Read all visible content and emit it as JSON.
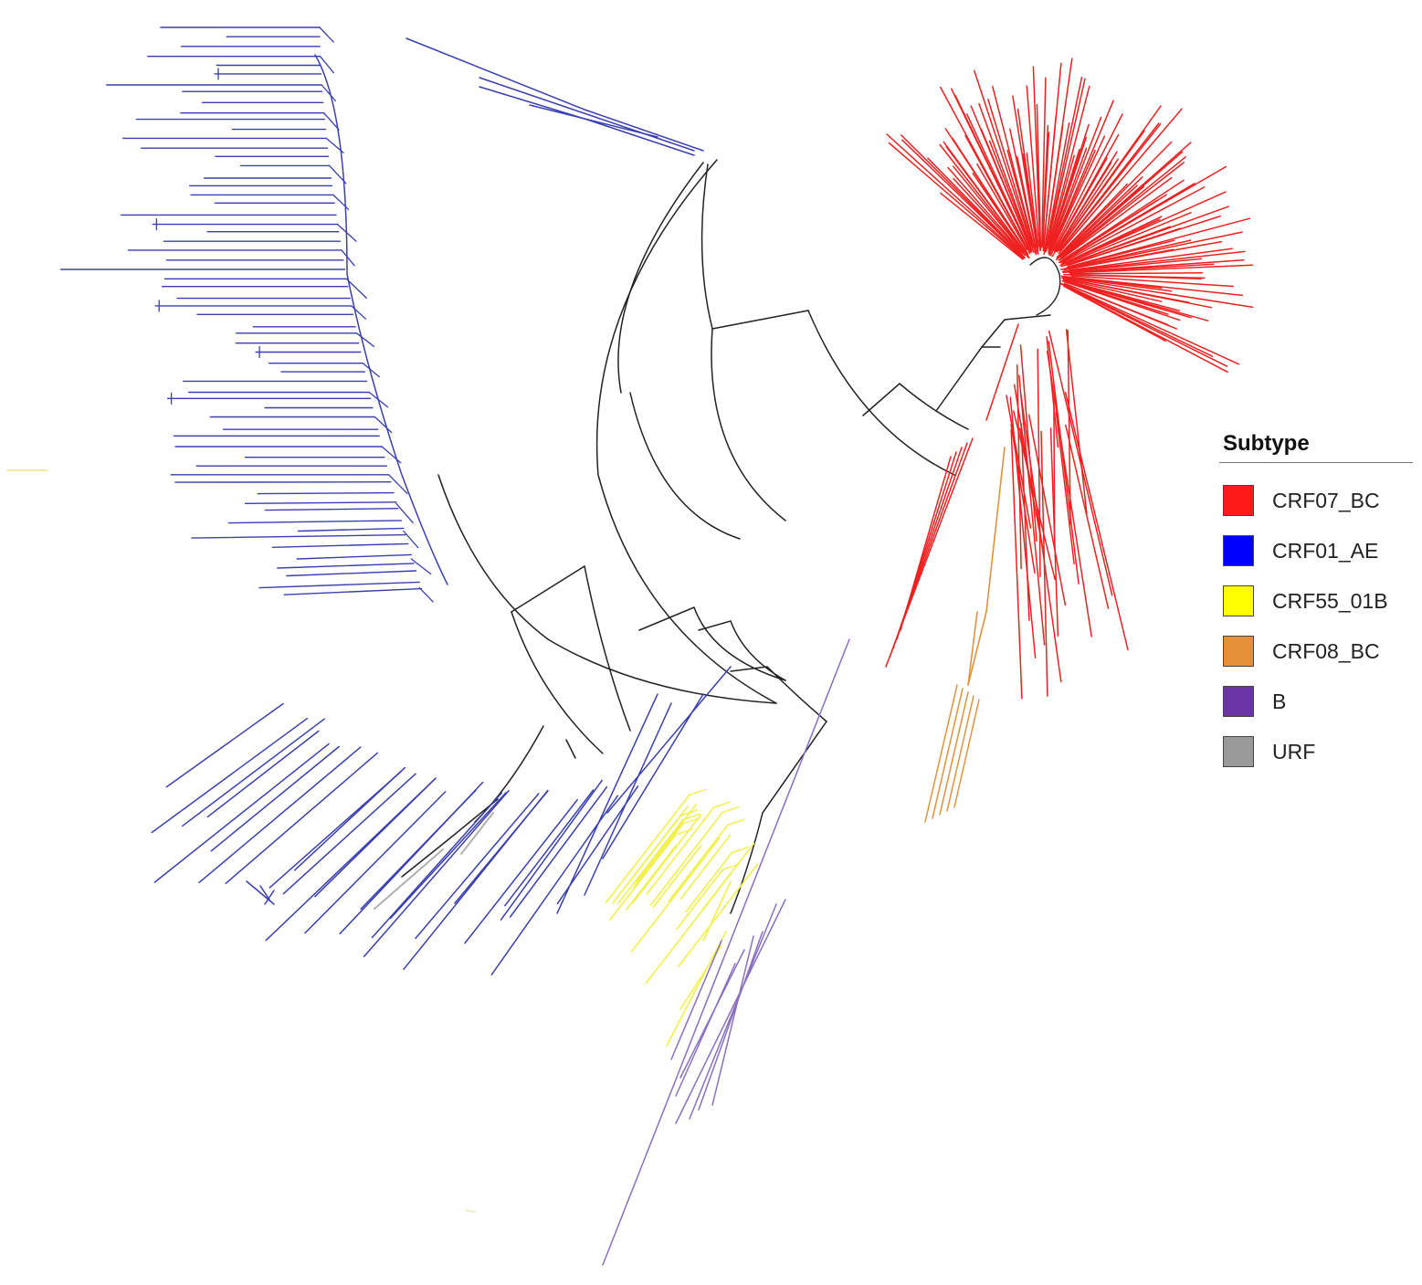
{
  "legend": {
    "title": "Subtype",
    "items": [
      {
        "label": "CRF07_BC",
        "color": "#ff1a1a"
      },
      {
        "label": "CRF01_AE",
        "color": "#0000ff"
      },
      {
        "label": "CRF55_01B",
        "color": "#ffff00"
      },
      {
        "label": "CRF08_BC",
        "color": "#e6903a"
      },
      {
        "label": "B",
        "color": "#6b35a8"
      },
      {
        "label": "URF",
        "color": "#999999"
      }
    ]
  },
  "branch_colors": {
    "CRF07_BC": "#ef2020",
    "CRF01_AE": "#3a3fb0",
    "CRF55_01B": "#f2f04a",
    "CRF08_BC": "#e2923f",
    "B": "#8a6fc0",
    "URF": "#b0b0b0",
    "internal": "#222222"
  }
}
